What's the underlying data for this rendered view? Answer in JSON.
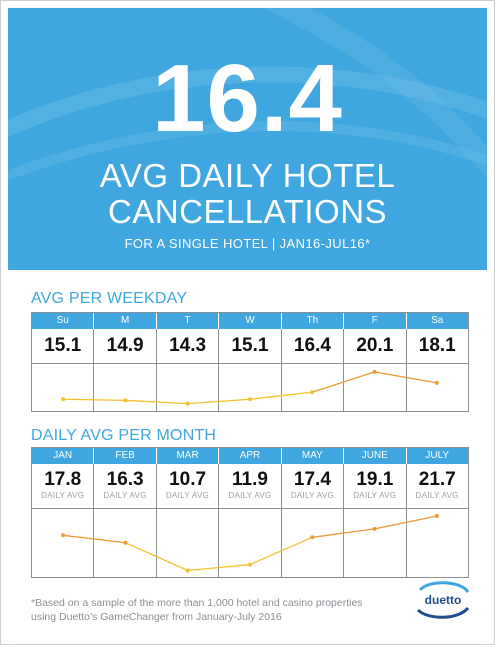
{
  "hero": {
    "number": "16.4",
    "title_line1": "AVG DAILY HOTEL",
    "title_line2": "CANCELLATIONS",
    "subtitle": "FOR A SINGLE HOTEL | JAN16-JUL16*",
    "background_color": "#3fa6df"
  },
  "weekday_section": {
    "title": "AVG PER WEEKDAY"
  },
  "month_section": {
    "title": "DAILY AVG PER MONTH",
    "value_sublabel": "DAILY AVG"
  },
  "footnote": {
    "line1": "*Based on a sample of the more than 1,000 hotel and casino properties",
    "line2": "using Duetto’s GameChanger from January-July 2016"
  },
  "logo": {
    "text": "duetto",
    "icon": "duetto-logo-icon"
  },
  "chart_data": [
    {
      "type": "line",
      "title": "AVG PER WEEKDAY",
      "categories": [
        "Su",
        "M",
        "T",
        "W",
        "Th",
        "F",
        "Sa"
      ],
      "values": [
        15.1,
        14.9,
        14.3,
        15.1,
        16.4,
        20.1,
        18.1
      ],
      "value_labels": [
        "15.1",
        "14.9",
        "14.3",
        "15.1",
        "16.4",
        "20.1",
        "18.1"
      ],
      "ylim": [
        13.5,
        21
      ],
      "grid": true,
      "line_color_low": "#f2c12e",
      "line_color_high": "#ec9a36"
    },
    {
      "type": "line",
      "title": "DAILY AVG PER MONTH",
      "categories": [
        "JAN",
        "FEB",
        "MAR",
        "APR",
        "MAY",
        "JUNE",
        "JULY"
      ],
      "values": [
        17.8,
        16.3,
        10.7,
        11.9,
        17.4,
        19.1,
        21.7
      ],
      "value_labels": [
        "17.8",
        "16.3",
        "10.7",
        "11.9",
        "17.4",
        "19.1",
        "21.7"
      ],
      "ylim": [
        10,
        22.5
      ],
      "grid": true,
      "line_color_low": "#f2c12e",
      "line_color_high": "#ec9a36"
    }
  ]
}
